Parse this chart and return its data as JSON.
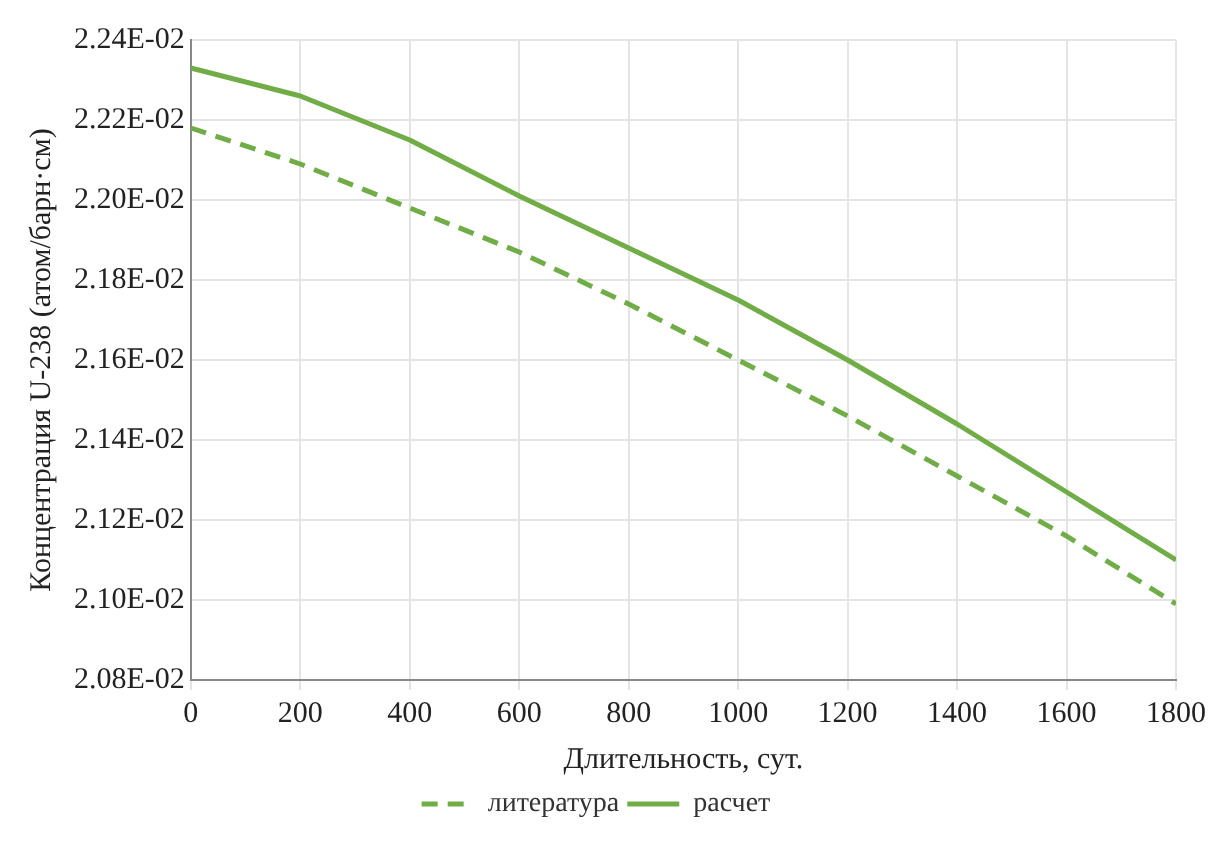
{
  "chart_data": {
    "type": "line",
    "xlabel": "Длительность, сут.",
    "ylabel": "Концентрация U-238 (атом/барн·см)",
    "x": [
      0,
      200,
      400,
      600,
      800,
      1000,
      1200,
      1400,
      1600,
      1800
    ],
    "series": [
      {
        "name": "литература",
        "color": "#70ad47",
        "line_style": "dashed",
        "values": [
          0.02218,
          0.02209,
          0.02198,
          0.02187,
          0.02174,
          0.0216,
          0.02146,
          0.02131,
          0.02116,
          0.02099
        ]
      },
      {
        "name": "расчет",
        "color": "#70ad47",
        "line_style": "solid",
        "values": [
          0.02233,
          0.02226,
          0.02215,
          0.02201,
          0.02188,
          0.02175,
          0.0216,
          0.02144,
          0.02127,
          0.0211
        ]
      }
    ],
    "xlim": [
      0,
      1800
    ],
    "xticks": [
      0,
      200,
      400,
      600,
      800,
      1000,
      1200,
      1400,
      1600,
      1800
    ],
    "ylim": [
      0.0208,
      0.0224
    ],
    "yticks": [
      {
        "value": 0.0208,
        "label": "2.08E-02"
      },
      {
        "value": 0.021,
        "label": "2.10E-02"
      },
      {
        "value": 0.0212,
        "label": "2.12E-02"
      },
      {
        "value": 0.0214,
        "label": "2.14E-02"
      },
      {
        "value": 0.0216,
        "label": "2.16E-02"
      },
      {
        "value": 0.0218,
        "label": "2.18E-02"
      },
      {
        "value": 0.022,
        "label": "2.20E-02"
      },
      {
        "value": 0.0222,
        "label": "2.22E-02"
      },
      {
        "value": 0.0224,
        "label": "2.24E-02"
      }
    ],
    "grid": true,
    "legend": "bottom",
    "marker": "none"
  }
}
